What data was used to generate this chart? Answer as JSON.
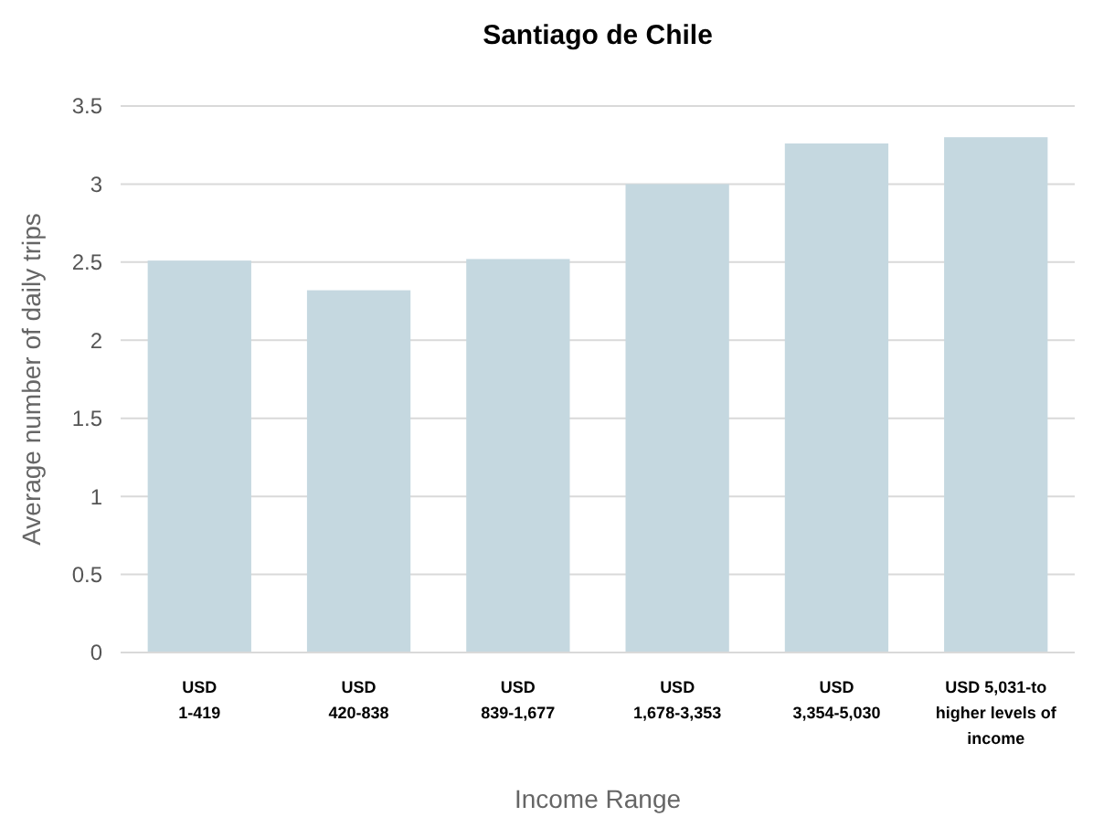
{
  "chart_data": {
    "type": "bar",
    "title": "Santiago de Chile",
    "xlabel": "Income Range",
    "ylabel": "Average number of daily trips",
    "categories": [
      "USD\n1-419",
      "USD\n420-838",
      "USD\n839-1,677",
      "USD\n1,678-3,353",
      "USD\n3,354-5,030",
      "USD 5,031-to\nhigher levels of\nincome"
    ],
    "values": [
      2.51,
      2.32,
      2.52,
      3.0,
      3.26,
      3.3
    ],
    "color": "#c5d8e0",
    "ylim": [
      0,
      3.5
    ],
    "yticks": [
      0,
      0.5,
      1,
      1.5,
      2,
      2.5,
      3,
      3.5
    ],
    "grid": "y"
  }
}
